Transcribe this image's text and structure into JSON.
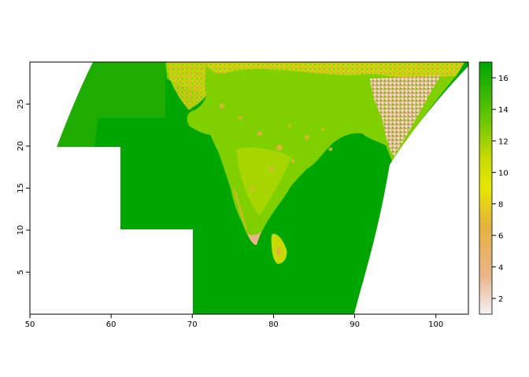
{
  "chart_data": {
    "type": "heatmap",
    "title": "",
    "xlabel": "",
    "ylabel": "",
    "xlim": [
      50,
      104
    ],
    "ylim": [
      0,
      30
    ],
    "x_ticks": [
      "50",
      "60",
      "70",
      "80",
      "90",
      "100"
    ],
    "y_ticks": [
      "5",
      "10",
      "15",
      "20",
      "25"
    ],
    "legend_position": "right",
    "colorbar": {
      "range": [
        1,
        17
      ],
      "ticks": [
        "2",
        "4",
        "6",
        "8",
        "10",
        "12",
        "14",
        "16"
      ]
    },
    "colors": {
      "water": "#00a600",
      "lowland": "#63c600",
      "plain": "#80d000",
      "upland": "#c8da00",
      "mid": "#e6b23f",
      "high": "#eab48a",
      "peak": "#f2f2f2"
    }
  }
}
